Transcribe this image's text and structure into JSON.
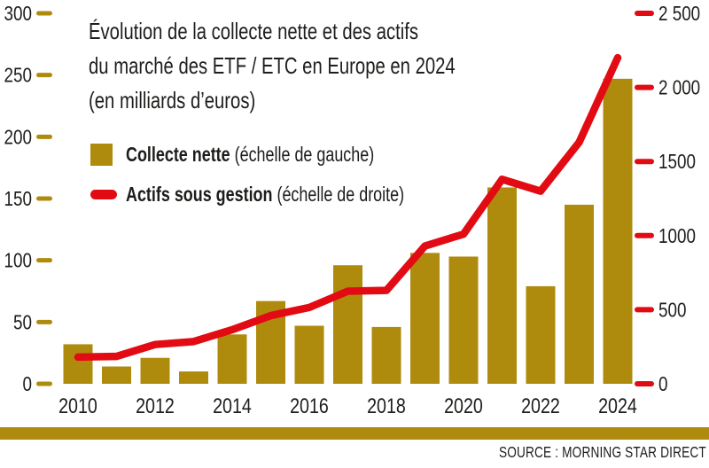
{
  "title": {
    "line1": "Évolution de la collecte nette et des actifs",
    "line2": "du marché des ETF / ETC en Europe en 2024",
    "line3": "(en milliards d’euros)"
  },
  "legend": {
    "items": [
      {
        "label": "Collecte nette",
        "suffix": " (échelle de gauche)"
      },
      {
        "label": "Actifs sous gestion",
        "suffix": " (échelle de droite)"
      }
    ]
  },
  "source": "SOURCE : MORNING STAR DIRECT",
  "colors": {
    "gold": "#af8b0d",
    "red": "#e30b13",
    "text": "#1d1d1b"
  },
  "chart_data": {
    "type": "bar+line",
    "title": "Évolution de la collecte nette et des actifs du marché des ETF / ETC en Europe en 2024 (en milliards d’euros)",
    "x": [
      2010,
      2011,
      2012,
      2013,
      2014,
      2015,
      2016,
      2017,
      2018,
      2019,
      2020,
      2021,
      2022,
      2023,
      2024
    ],
    "x_tick_labels": [
      "2010",
      "2012",
      "2014",
      "2016",
      "2018",
      "2020",
      "2022",
      "2024"
    ],
    "series": [
      {
        "name": "Collecte nette",
        "type": "bar",
        "axis": "left",
        "values": [
          32,
          14,
          21,
          10,
          40,
          67,
          47,
          96,
          46,
          106,
          103,
          159,
          79,
          145,
          247
        ]
      },
      {
        "name": "Actifs sous gestion",
        "type": "line",
        "axis": "right",
        "values": [
          180,
          185,
          265,
          285,
          365,
          460,
          515,
          625,
          630,
          930,
          1010,
          1380,
          1300,
          1630,
          2200
        ]
      }
    ],
    "left_axis": {
      "range": [
        0,
        300
      ],
      "ticks": [
        0,
        50,
        100,
        150,
        200,
        250,
        300
      ],
      "labels": [
        "0",
        "50",
        "100",
        "150",
        "200",
        "250",
        "300"
      ]
    },
    "right_axis": {
      "range": [
        0,
        2500
      ],
      "ticks": [
        0,
        500,
        1000,
        1500,
        2000,
        2500
      ],
      "labels": [
        "0",
        "500",
        "1000",
        "1500",
        "2 000",
        "2 500"
      ]
    },
    "grid": false,
    "legend_position": "top-left"
  }
}
